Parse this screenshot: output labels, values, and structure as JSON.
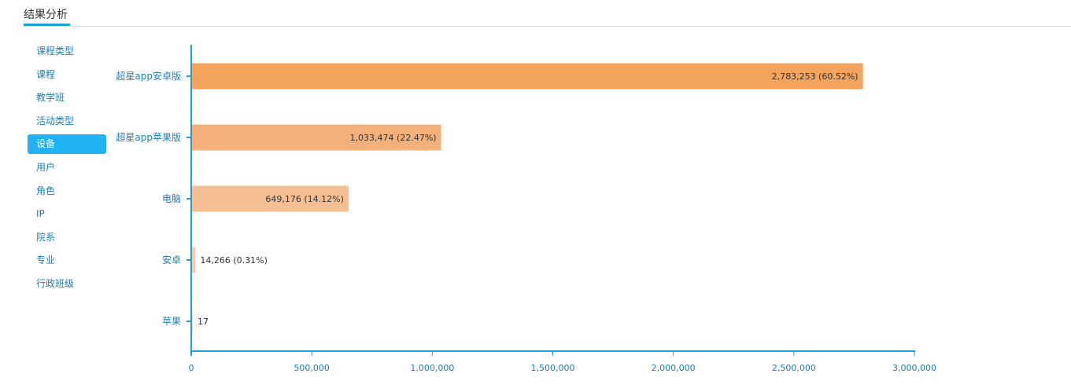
{
  "header": {
    "title": "结果分析"
  },
  "sidebar": {
    "items": [
      {
        "label": "课程类型",
        "active": false
      },
      {
        "label": "课程",
        "active": false
      },
      {
        "label": "教学班",
        "active": false
      },
      {
        "label": "活动类型",
        "active": false
      },
      {
        "label": "设备",
        "active": true
      },
      {
        "label": "用户",
        "active": false
      },
      {
        "label": "角色",
        "active": false
      },
      {
        "label": "IP",
        "active": false
      },
      {
        "label": "院系",
        "active": false
      },
      {
        "label": "专业",
        "active": false
      },
      {
        "label": "行政班级",
        "active": false
      }
    ]
  },
  "colors": {
    "accent": "#1e9fd8",
    "axis": "#1e9fd8",
    "label": "#1e7fb3",
    "bars": [
      "#f3a35c",
      "#f4b07a",
      "#f5bf94",
      "#f7cdb0",
      "#f9dcc8"
    ]
  },
  "chart_data": {
    "type": "bar",
    "orientation": "horizontal",
    "categories": [
      "超星app安卓版",
      "超星app苹果版",
      "电脑",
      "安卓",
      "苹果"
    ],
    "values": [
      2783253,
      1033474,
      649176,
      14266,
      17
    ],
    "data_labels": [
      "2,783,253 (60.52%)",
      "1,033,474 (22.47%)",
      "649,176 (14.12%)",
      "14,266 (0.31%)",
      "17"
    ],
    "xlim": [
      0,
      3000000
    ],
    "xticks": [
      0,
      500000,
      1000000,
      1500000,
      2000000,
      2500000,
      3000000
    ],
    "xtick_labels": [
      "0",
      "500,000",
      "1,000,000",
      "1,500,000",
      "2,000,000",
      "2,500,000",
      "3,000,000"
    ],
    "grid": false,
    "legend": "none"
  }
}
